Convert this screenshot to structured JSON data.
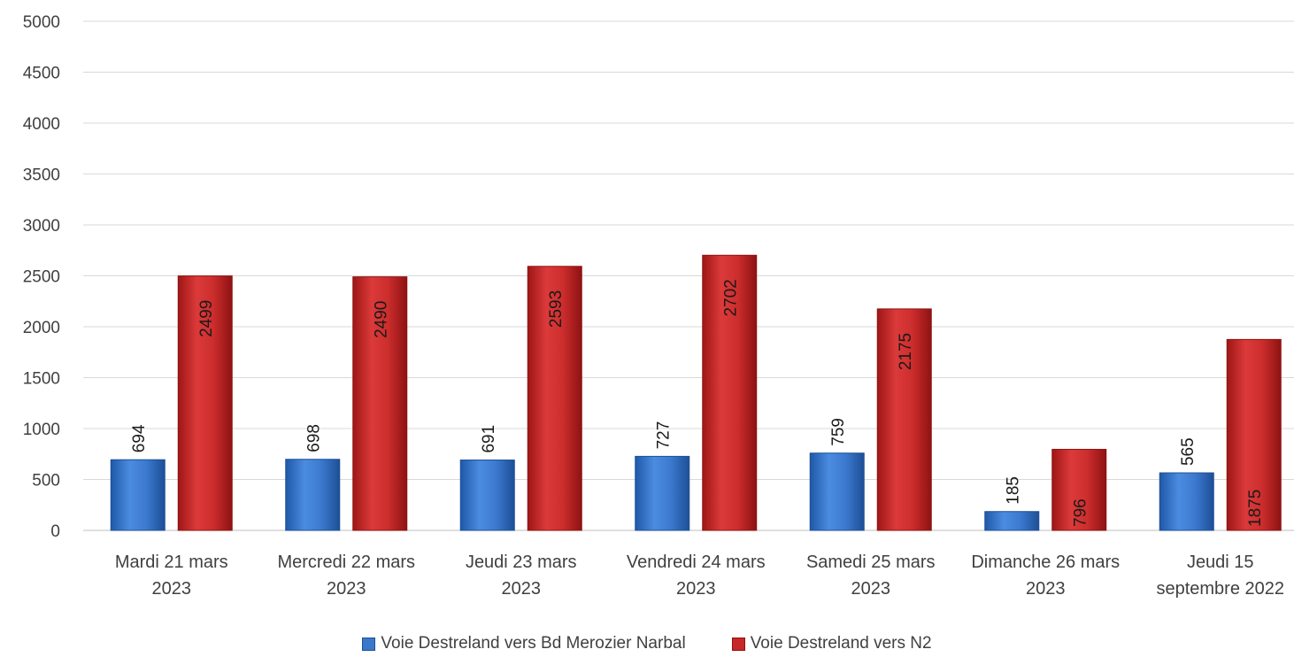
{
  "chart_data": {
    "type": "bar",
    "title": "",
    "xlabel": "",
    "ylabel": "",
    "ylim": [
      0,
      5000
    ],
    "yticks": [
      0,
      500,
      1000,
      1500,
      2000,
      2500,
      3000,
      3500,
      4000,
      4500,
      5000
    ],
    "grid": true,
    "legend_position": "bottom",
    "categories": [
      [
        "Mardi 21 mars",
        "2023"
      ],
      [
        "Mercredi 22 mars",
        "2023"
      ],
      [
        "Jeudi 23 mars",
        "2023"
      ],
      [
        "Vendredi 24 mars",
        "2023"
      ],
      [
        "Samedi 25 mars",
        "2023"
      ],
      [
        "Dimanche 26 mars",
        "2023"
      ],
      [
        "Jeudi 15",
        "septembre 2022"
      ]
    ],
    "series": [
      {
        "name": "Voie Destreland vers Bd Merozier Narbal",
        "color": "#3a78c9",
        "values": [
          694,
          698,
          691,
          727,
          759,
          185,
          565
        ]
      },
      {
        "name": "Voie Destreland vers N2",
        "color": "#c62828",
        "values": [
          2499,
          2490,
          2593,
          2702,
          2175,
          796,
          1875
        ]
      }
    ]
  }
}
